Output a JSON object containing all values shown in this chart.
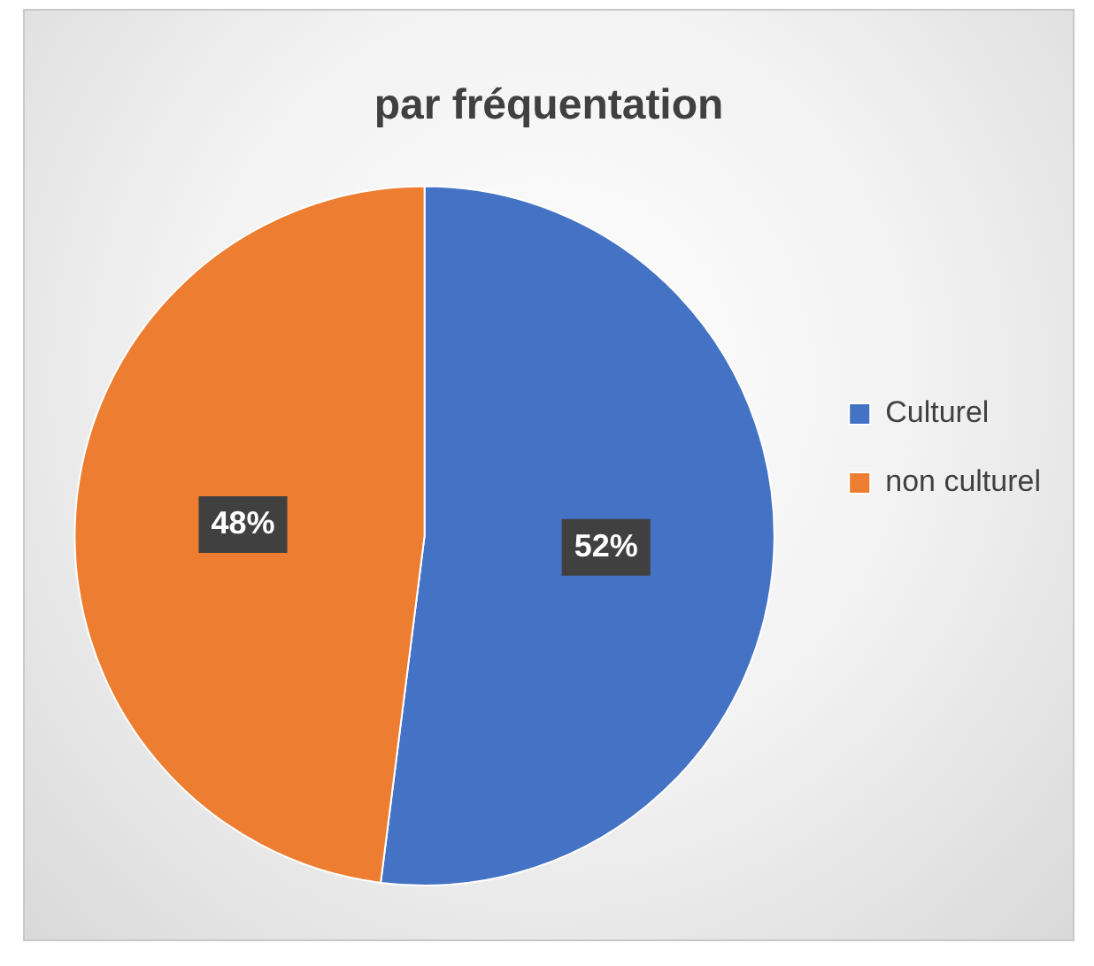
{
  "chart_data": {
    "type": "pie",
    "title": "par fréquentation",
    "categories": [
      "Culturel",
      "non culturel"
    ],
    "values": [
      52,
      48
    ],
    "colors": [
      "#4472c4",
      "#ed7d31"
    ],
    "value_labels": [
      "52%",
      "48%"
    ],
    "legend": "right"
  }
}
